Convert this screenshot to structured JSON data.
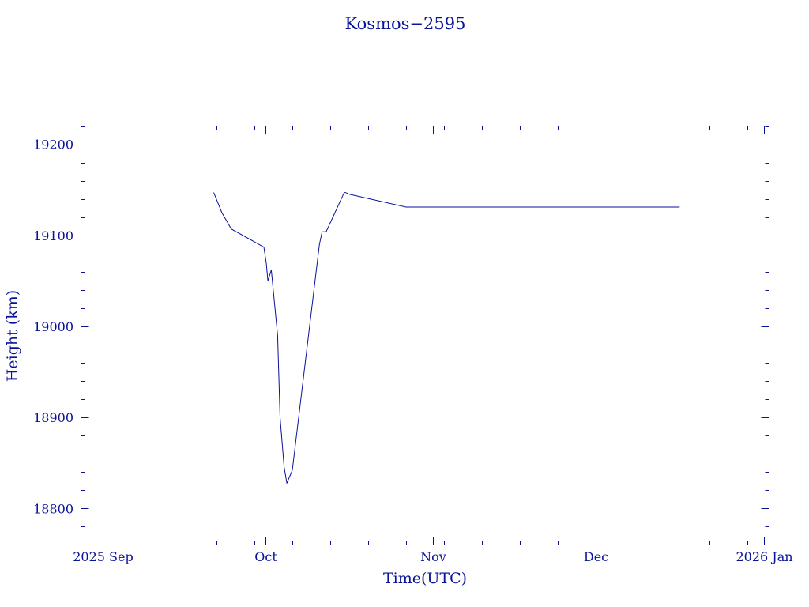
{
  "chart_data": {
    "type": "line",
    "title": "Kosmos−2595",
    "xlabel": "Time(UTC)",
    "ylabel": "Height (km)",
    "xlim": [
      "2025-08-28",
      "2026-01-02"
    ],
    "ylim": [
      18760,
      19220
    ],
    "y_ticks": [
      18800,
      18900,
      19000,
      19100,
      19200
    ],
    "x_ticks": [
      {
        "date": "2025-09-01",
        "label": "2025 Sep"
      },
      {
        "date": "2025-10-01",
        "label": "Oct"
      },
      {
        "date": "2025-11-01",
        "label": "Nov"
      },
      {
        "date": "2025-12-01",
        "label": "Dec"
      },
      {
        "date": "2026-01-01",
        "label": "2026 Jan"
      }
    ],
    "grid": false,
    "color": "#0a1299",
    "series": [
      {
        "x": [
          "2025-09-21T12:00",
          "2025-09-23T00:00",
          "2025-09-24T18:00",
          "2025-09-30T18:00",
          "2025-10-01T05:00",
          "2025-10-01T12:00",
          "2025-10-02T03:00",
          "2025-10-03T07:00",
          "2025-10-03T18:00",
          "2025-10-04T12:00",
          "2025-10-05T00:00",
          "2025-10-06T00:00",
          "2025-10-11T00:00",
          "2025-10-11T12:00",
          "2025-10-12T06:00",
          "2025-10-15T14:00",
          "2025-10-15T20:00",
          "2025-10-16T14:00",
          "2025-10-27T00:00",
          "2025-11-15T00:00",
          "2025-12-01T00:00",
          "2025-12-16T12:00"
        ],
        "y": [
          19147,
          19125,
          19107,
          19087,
          19069,
          19050,
          19062,
          18990,
          18900,
          18845,
          18828,
          18842,
          19090,
          19104,
          19104,
          19147,
          19147,
          19145,
          19131,
          19131,
          19131,
          19131
        ]
      }
    ]
  }
}
